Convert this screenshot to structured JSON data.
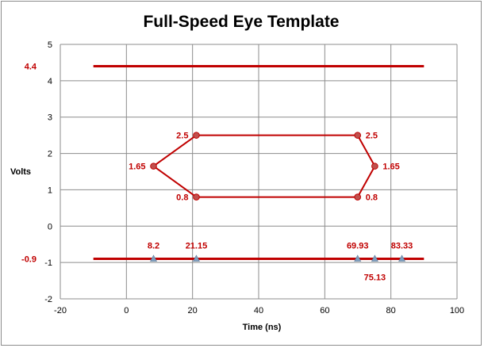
{
  "chart_data": {
    "type": "line",
    "title": "Full-Speed Eye Template",
    "xlabel": "Time (ns)",
    "ylabel": "Volts",
    "xlim": [
      -20,
      100
    ],
    "ylim": [
      -2,
      5
    ],
    "x_ticks": [
      -20,
      0,
      20,
      40,
      60,
      80,
      100
    ],
    "y_ticks": [
      -2,
      -1,
      0,
      1,
      2,
      3,
      4,
      5
    ],
    "grid": true,
    "legend": "none",
    "colors": {
      "line": "#c00000",
      "marker": "#c0504d",
      "triangle": "#7f9fbf"
    },
    "series": [
      {
        "points": [
          [
            -10,
            4.4
          ],
          [
            90,
            4.4
          ]
        ]
      },
      {
        "points": [
          [
            -10,
            -0.9
          ],
          [
            90,
            -0.9
          ]
        ]
      },
      {
        "points": [
          [
            8.2,
            1.65
          ],
          [
            21.15,
            2.5
          ],
          [
            69.93,
            2.5
          ],
          [
            75.13,
            1.65
          ],
          [
            69.93,
            0.8
          ],
          [
            21.15,
            0.8
          ],
          [
            8.2,
            1.65
          ]
        ]
      }
    ],
    "triangle_markers": [
      {
        "x": 8.2,
        "y": -0.9
      },
      {
        "x": 21.15,
        "y": -0.9
      },
      {
        "x": 69.93,
        "y": -0.9
      },
      {
        "x": 75.13,
        "y": -0.9
      },
      {
        "x": 83.33,
        "y": -0.9
      }
    ],
    "annotations": [
      {
        "text": "4.4",
        "x": -20,
        "y": 4.4,
        "pos": "left-of-axis"
      },
      {
        "text": "-0.9",
        "x": -20,
        "y": -0.9,
        "pos": "left-of-axis"
      },
      {
        "text": "2.5",
        "x": 21.15,
        "y": 2.5,
        "pos": "left"
      },
      {
        "text": "2.5",
        "x": 69.93,
        "y": 2.5,
        "pos": "right"
      },
      {
        "text": "1.65",
        "x": 8.2,
        "y": 1.65,
        "pos": "left"
      },
      {
        "text": "1.65",
        "x": 75.13,
        "y": 1.65,
        "pos": "right"
      },
      {
        "text": "0.8",
        "x": 21.15,
        "y": 0.8,
        "pos": "left"
      },
      {
        "text": "0.8",
        "x": 69.93,
        "y": 0.8,
        "pos": "right"
      },
      {
        "text": "8.2",
        "x": 8.2,
        "y": -0.9,
        "pos": "above"
      },
      {
        "text": "21.15",
        "x": 21.15,
        "y": -0.9,
        "pos": "above"
      },
      {
        "text": "69.93",
        "x": 69.93,
        "y": -0.9,
        "pos": "above"
      },
      {
        "text": "75.13",
        "x": 75.13,
        "y": -0.9,
        "pos": "below"
      },
      {
        "text": "83.33",
        "x": 83.33,
        "y": -0.9,
        "pos": "above"
      }
    ]
  }
}
